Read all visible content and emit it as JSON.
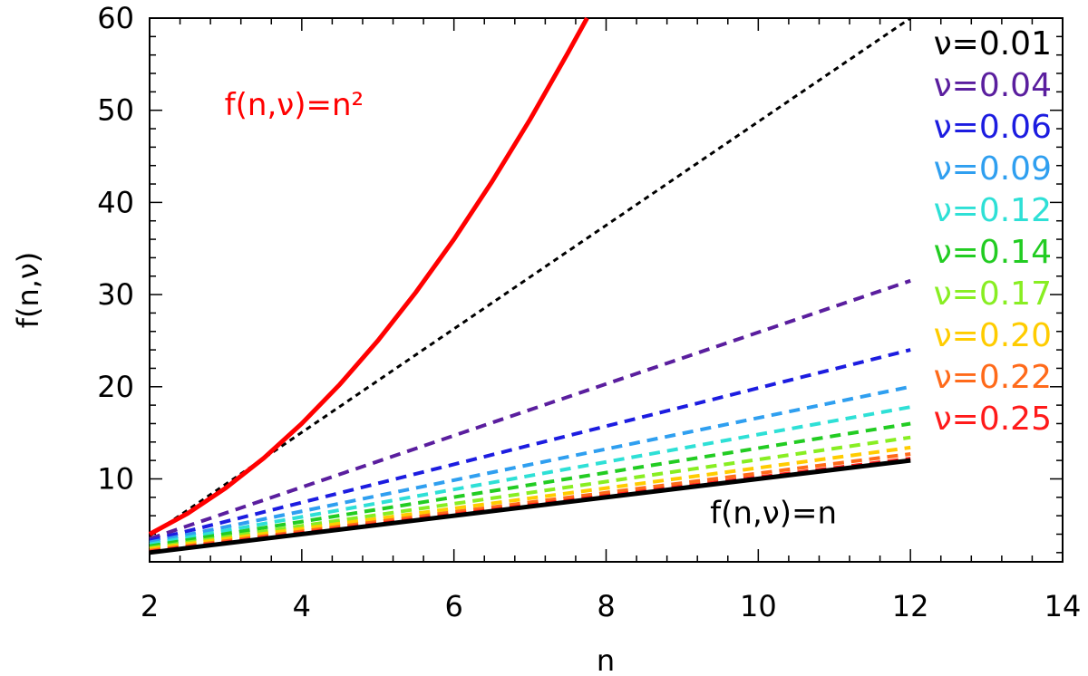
{
  "chart_data": {
    "type": "line",
    "xlabel": "n",
    "ylabel": "f(n,ν)",
    "xlim": [
      2,
      14
    ],
    "ylim": [
      1,
      60
    ],
    "xticks": [
      {
        "value": 2,
        "label": "2"
      },
      {
        "value": 4,
        "label": "4"
      },
      {
        "value": 6,
        "label": "6"
      },
      {
        "value": 8,
        "label": "8"
      },
      {
        "value": 10,
        "label": "10"
      },
      {
        "value": 12,
        "label": "12"
      },
      {
        "value": 14,
        "label": "14"
      }
    ],
    "yticks": [
      {
        "value": 10,
        "label": "10"
      },
      {
        "value": 20,
        "label": "20"
      },
      {
        "value": 30,
        "label": "30"
      },
      {
        "value": 40,
        "label": "40"
      },
      {
        "value": 50,
        "label": "50"
      },
      {
        "value": 60,
        "label": "60"
      }
    ],
    "legend_position": "right",
    "annotations": [
      {
        "text": "f(n,ν)=n²",
        "at_x": 3.9,
        "at_y": 49.5,
        "color": "#ff0000"
      },
      {
        "text": "f(n,ν)=n",
        "at_x": 10.2,
        "at_y": 5.2,
        "color": "#000000"
      }
    ],
    "series": [
      {
        "name": "ν=0.01",
        "color": "#000000",
        "style": "dashed",
        "x": [
          2,
          12
        ],
        "y": [
          3.8,
          60
        ]
      },
      {
        "name": "ν=0.04",
        "color": "#5a1e9e",
        "style": "dashed",
        "x": [
          2,
          12
        ],
        "y": [
          3.5,
          31.5
        ]
      },
      {
        "name": "ν=0.06",
        "color": "#1c1ce0",
        "style": "dashed",
        "x": [
          2,
          12
        ],
        "y": [
          3.3,
          24
        ]
      },
      {
        "name": "ν=0.09",
        "color": "#2f9ff0",
        "style": "dashed",
        "x": [
          2,
          12
        ],
        "y": [
          3.1,
          20
        ]
      },
      {
        "name": "ν=0.12",
        "color": "#2ee0d6",
        "style": "dashed",
        "x": [
          2,
          12
        ],
        "y": [
          2.9,
          17.8
        ]
      },
      {
        "name": "ν=0.14",
        "color": "#22cc22",
        "style": "dashed",
        "x": [
          2,
          12
        ],
        "y": [
          2.7,
          16
        ]
      },
      {
        "name": "ν=0.17",
        "color": "#88ee22",
        "style": "dashed",
        "x": [
          2,
          12
        ],
        "y": [
          2.5,
          14.5
        ]
      },
      {
        "name": "ν=0.20",
        "color": "#ffcc00",
        "style": "dashed",
        "x": [
          2,
          12
        ],
        "y": [
          2.4,
          13.4
        ]
      },
      {
        "name": "ν=0.22",
        "color": "#ff6a1a",
        "style": "dashed",
        "x": [
          2,
          12
        ],
        "y": [
          2.2,
          12.7
        ]
      },
      {
        "name": "ν=0.25",
        "color": "#ff1a1a",
        "style": "dashed",
        "x": [
          2,
          12
        ],
        "y": [
          2.1,
          12.2
        ]
      }
    ],
    "reference_curves": [
      {
        "label": "f(n,ν)=n²",
        "color": "#ff0000",
        "style": "solid",
        "x": [
          2,
          2.5,
          3,
          3.5,
          4,
          4.5,
          5,
          5.5,
          6,
          6.5,
          7,
          7.5,
          7.75
        ],
        "y": [
          4,
          6.25,
          9,
          12.25,
          16,
          20.25,
          25,
          30.25,
          36,
          42.25,
          49,
          56.25,
          60
        ]
      },
      {
        "label": "f(n,ν)=n",
        "color": "#000000",
        "style": "solid",
        "x": [
          2,
          12
        ],
        "y": [
          2,
          12
        ]
      }
    ]
  }
}
